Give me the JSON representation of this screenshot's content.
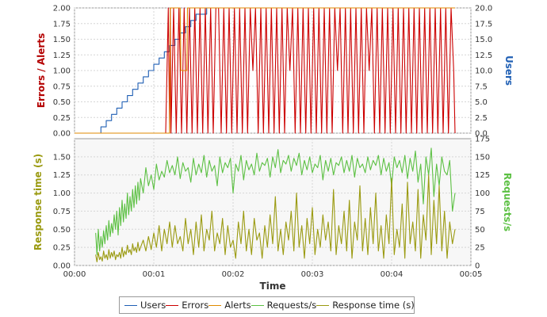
{
  "chart_data": [
    {
      "type": "line",
      "panel": "top",
      "xlabel": "",
      "ylabel_left": "Errors / Alerts",
      "ylabel_right": "Users",
      "xlim": [
        0,
        300
      ],
      "ylim_left": [
        0,
        2
      ],
      "ylim_right": [
        0,
        20
      ],
      "yticks_left": [
        "0.00",
        "0.25",
        "0.50",
        "0.75",
        "1.00",
        "1.25",
        "1.50",
        "1.75",
        "2.00"
      ],
      "yticks_right": [
        "0.0",
        "2.5",
        "5.0",
        "7.5",
        "10.0",
        "12.5",
        "15.0",
        "17.5",
        "20.0"
      ],
      "grid": true,
      "series": [
        {
          "name": "Users",
          "color": "#1f5fb4",
          "axis": "right",
          "x": [
            16,
            20,
            20,
            24,
            24,
            28,
            28,
            32,
            32,
            36,
            36,
            40,
            40,
            44,
            44,
            48,
            48,
            52,
            52,
            56,
            56,
            60,
            60,
            64,
            64,
            68,
            68,
            72,
            72,
            76,
            76,
            80,
            80,
            84,
            84,
            88,
            88,
            92,
            92,
            96,
            96,
            100,
            100,
            104,
            104,
            108,
            108,
            288
          ],
          "y": [
            0,
            0,
            1,
            1,
            2,
            2,
            3,
            3,
            4,
            4,
            5,
            5,
            6,
            6,
            7,
            7,
            8,
            8,
            9,
            9,
            10,
            10,
            11,
            11,
            12,
            12,
            13,
            13,
            14,
            14,
            15,
            15,
            16,
            16,
            17,
            17,
            18,
            18,
            19,
            19,
            19,
            19,
            20,
            20,
            20,
            20,
            20,
            20
          ]
        },
        {
          "name": "Errors",
          "color": "#cc0000",
          "axis": "left",
          "x": [
            0,
            69,
            71,
            72,
            72.5,
            73,
            75,
            77,
            79,
            81,
            83,
            85,
            87,
            89,
            91,
            93,
            95,
            97,
            99,
            101,
            103,
            105,
            107,
            109,
            111,
            113,
            115,
            117,
            119,
            121,
            123,
            125,
            127,
            129,
            131,
            133,
            135,
            137,
            139,
            141,
            143,
            145,
            147,
            149,
            151,
            153,
            155,
            157,
            159,
            161,
            163,
            165,
            167,
            169,
            171,
            173,
            175,
            177,
            179,
            181,
            183,
            185,
            187,
            189,
            191,
            193,
            195,
            197,
            199,
            201,
            203,
            205,
            207,
            209,
            211,
            213,
            215,
            217,
            219,
            221,
            223,
            225,
            227,
            229,
            231,
            233,
            235,
            237,
            239,
            241,
            243,
            245,
            247,
            249,
            251,
            253,
            255,
            257,
            259,
            261,
            263,
            265,
            267,
            269,
            271,
            273,
            275,
            277,
            279,
            281,
            283,
            285,
            287,
            288
          ],
          "y": [
            0,
            0,
            2,
            0,
            2,
            0,
            2,
            0,
            2,
            0,
            2,
            0,
            2,
            0,
            2,
            0,
            2,
            0,
            2,
            0,
            2,
            0,
            2,
            2,
            0,
            2,
            0,
            2,
            0,
            2,
            0,
            2,
            0,
            2,
            0,
            2,
            1,
            2,
            0,
            2,
            0,
            2,
            0,
            2,
            0,
            2,
            0,
            2,
            0,
            2,
            1,
            2,
            0,
            2,
            0,
            2,
            0,
            2,
            0,
            2,
            0,
            2,
            0,
            2,
            0,
            2,
            0,
            2,
            1,
            2,
            0,
            2,
            0,
            2,
            0,
            2,
            0,
            2,
            0,
            2,
            1,
            2,
            0,
            2,
            0,
            2,
            0,
            2,
            0,
            2,
            0,
            2,
            0,
            2,
            0,
            2,
            0,
            2,
            0,
            2,
            0,
            2,
            0,
            2,
            0,
            2,
            0,
            2,
            0,
            2,
            0,
            2,
            1,
            0
          ]
        },
        {
          "name": "Alerts",
          "color": "#e08a00",
          "axis": "left",
          "x": [
            0,
            72,
            72.5,
            80,
            80.5,
            85,
            85.5,
            88,
            88.5,
            232,
            232.5,
            288
          ],
          "y": [
            0,
            0,
            2,
            2,
            1,
            1,
            2,
            2,
            2,
            2,
            2,
            2
          ]
        }
      ]
    },
    {
      "type": "line",
      "panel": "bottom",
      "xlabel": "Time",
      "ylabel_left": "Response time (s)",
      "ylabel_right": "Requests/s",
      "xlim": [
        0,
        300
      ],
      "ylim_left": [
        0,
        1.75
      ],
      "ylim_right": [
        0,
        175
      ],
      "xticks": [
        "00:00",
        "00:01",
        "00:02",
        "00:03",
        "00:04",
        "00:05"
      ],
      "yticks_left": [
        "0.00",
        "0.25",
        "0.50",
        "0.75",
        "1.00",
        "1.25",
        "1.50"
      ],
      "yticks_right": [
        "0",
        "25",
        "50",
        "75",
        "100",
        "125",
        "150",
        "175"
      ],
      "grid": true,
      "series": [
        {
          "name": "Requests/s",
          "color": "#5cc043",
          "axis": "right",
          "x": [
            16,
            17,
            18,
            19,
            20,
            21,
            22,
            23,
            24,
            25,
            26,
            27,
            28,
            29,
            30,
            31,
            32,
            33,
            34,
            35,
            36,
            37,
            38,
            39,
            40,
            41,
            42,
            43,
            44,
            45,
            46,
            47,
            48,
            49,
            50,
            52,
            54,
            56,
            58,
            60,
            62,
            64,
            66,
            68,
            70,
            72,
            74,
            76,
            78,
            80,
            82,
            84,
            86,
            88,
            90,
            92,
            94,
            96,
            98,
            100,
            102,
            104,
            106,
            108,
            110,
            112,
            114,
            116,
            118,
            120,
            122,
            124,
            126,
            128,
            130,
            132,
            134,
            136,
            138,
            140,
            142,
            144,
            146,
            148,
            150,
            152,
            154,
            156,
            158,
            160,
            162,
            164,
            166,
            168,
            170,
            172,
            174,
            176,
            178,
            180,
            182,
            184,
            186,
            188,
            190,
            192,
            194,
            196,
            198,
            200,
            202,
            204,
            206,
            208,
            210,
            212,
            214,
            216,
            218,
            220,
            222,
            224,
            226,
            228,
            230,
            232,
            234,
            236,
            238,
            240,
            242,
            244,
            246,
            248,
            250,
            252,
            254,
            256,
            258,
            260,
            262,
            264,
            266,
            268,
            270,
            272,
            274,
            276,
            278,
            280,
            282,
            284,
            286,
            288
          ],
          "y": [
            45,
            15,
            50,
            20,
            40,
            25,
            48,
            30,
            55,
            35,
            62,
            40,
            58,
            45,
            70,
            50,
            75,
            42,
            80,
            55,
            90,
            60,
            85,
            65,
            100,
            70,
            95,
            75,
            105,
            80,
            110,
            85,
            115,
            90,
            120,
            100,
            135,
            110,
            125,
            105,
            140,
            118,
            130,
            122,
            145,
            128,
            138,
            125,
            150,
            120,
            142,
            130,
            135,
            115,
            148,
            125,
            140,
            128,
            152,
            122,
            145,
            130,
            138,
            110,
            150,
            128,
            142,
            135,
            148,
            100,
            140,
            130,
            152,
            118,
            145,
            132,
            140,
            125,
            155,
            130,
            142,
            138,
            148,
            122,
            150,
            135,
            160,
            128,
            145,
            140,
            152,
            130,
            148,
            138,
            155,
            125,
            145,
            132,
            150,
            128,
            140,
            135,
            152,
            118,
            145,
            130,
            148,
            125,
            142,
            138,
            150,
            128,
            145,
            130,
            152,
            122,
            148,
            135,
            140,
            128,
            150,
            132,
            145,
            138,
            152,
            125,
            148,
            130,
            142,
            110,
            150,
            135,
            145,
            128,
            152,
            120,
            148,
            130,
            158,
            115,
            140,
            85,
            150,
            125,
            162,
            95,
            140,
            110,
            150,
            130,
            125,
            145,
            75,
            100
          ]
        },
        {
          "name": "Response time (s)",
          "color": "#9a9a10",
          "axis": "left",
          "x": [
            16,
            17,
            18,
            19,
            20,
            21,
            22,
            23,
            24,
            25,
            26,
            27,
            28,
            29,
            30,
            31,
            32,
            33,
            34,
            35,
            36,
            37,
            38,
            39,
            40,
            41,
            42,
            43,
            44,
            45,
            46,
            47,
            48,
            49,
            50,
            52,
            54,
            56,
            58,
            60,
            62,
            64,
            66,
            68,
            70,
            72,
            74,
            76,
            78,
            80,
            82,
            84,
            86,
            88,
            90,
            92,
            94,
            96,
            98,
            100,
            102,
            104,
            106,
            108,
            110,
            112,
            114,
            116,
            118,
            120,
            122,
            124,
            126,
            128,
            130,
            132,
            134,
            136,
            138,
            140,
            142,
            144,
            146,
            148,
            150,
            152,
            154,
            156,
            158,
            160,
            162,
            164,
            166,
            168,
            170,
            172,
            174,
            176,
            178,
            180,
            182,
            184,
            186,
            188,
            190,
            192,
            194,
            196,
            198,
            200,
            202,
            204,
            206,
            208,
            210,
            212,
            214,
            216,
            218,
            220,
            222,
            224,
            226,
            228,
            230,
            232,
            234,
            236,
            238,
            240,
            242,
            244,
            246,
            248,
            250,
            252,
            254,
            256,
            258,
            260,
            262,
            264,
            266,
            268,
            270,
            272,
            274,
            276,
            278,
            280,
            282,
            284,
            286,
            288
          ],
          "y": [
            0.15,
            0.05,
            0.18,
            0.08,
            0.12,
            0.06,
            0.2,
            0.1,
            0.15,
            0.08,
            0.22,
            0.1,
            0.18,
            0.12,
            0.2,
            0.08,
            0.15,
            0.12,
            0.18,
            0.1,
            0.25,
            0.12,
            0.2,
            0.15,
            0.28,
            0.18,
            0.22,
            0.15,
            0.3,
            0.2,
            0.25,
            0.18,
            0.32,
            0.2,
            0.25,
            0.35,
            0.2,
            0.4,
            0.22,
            0.45,
            0.25,
            0.55,
            0.2,
            0.5,
            0.3,
            0.6,
            0.25,
            0.55,
            0.3,
            0.4,
            0.2,
            0.65,
            0.3,
            0.5,
            0.15,
            0.6,
            0.25,
            0.7,
            0.2,
            0.5,
            0.35,
            0.75,
            0.2,
            0.45,
            0.3,
            0.65,
            0.15,
            0.55,
            0.25,
            0.35,
            0.1,
            0.6,
            0.3,
            0.75,
            0.2,
            0.5,
            0.15,
            0.65,
            0.35,
            0.45,
            0.1,
            0.55,
            0.25,
            0.7,
            0.3,
            0.95,
            0.2,
            0.5,
            0.15,
            0.6,
            0.35,
            0.75,
            0.2,
            1.0,
            0.25,
            0.55,
            0.1,
            0.65,
            0.3,
            0.8,
            0.15,
            0.5,
            0.25,
            0.7,
            0.35,
            0.6,
            0.2,
            1.05,
            0.15,
            0.55,
            0.3,
            0.75,
            0.2,
            0.9,
            0.1,
            0.6,
            0.35,
            1.1,
            0.2,
            0.65,
            0.15,
            0.8,
            0.3,
            1.0,
            0.2,
            0.55,
            0.1,
            0.7,
            0.3,
            1.2,
            0.15,
            0.5,
            0.25,
            0.85,
            0.1,
            1.15,
            0.3,
            0.6,
            0.2,
            1.05,
            0.1,
            0.7,
            0.35,
            1.25,
            0.15,
            0.9,
            0.3,
            1.1,
            0.2,
            0.75,
            0.1,
            0.6,
            0.3,
            0.5
          ]
        }
      ]
    }
  ]
}
